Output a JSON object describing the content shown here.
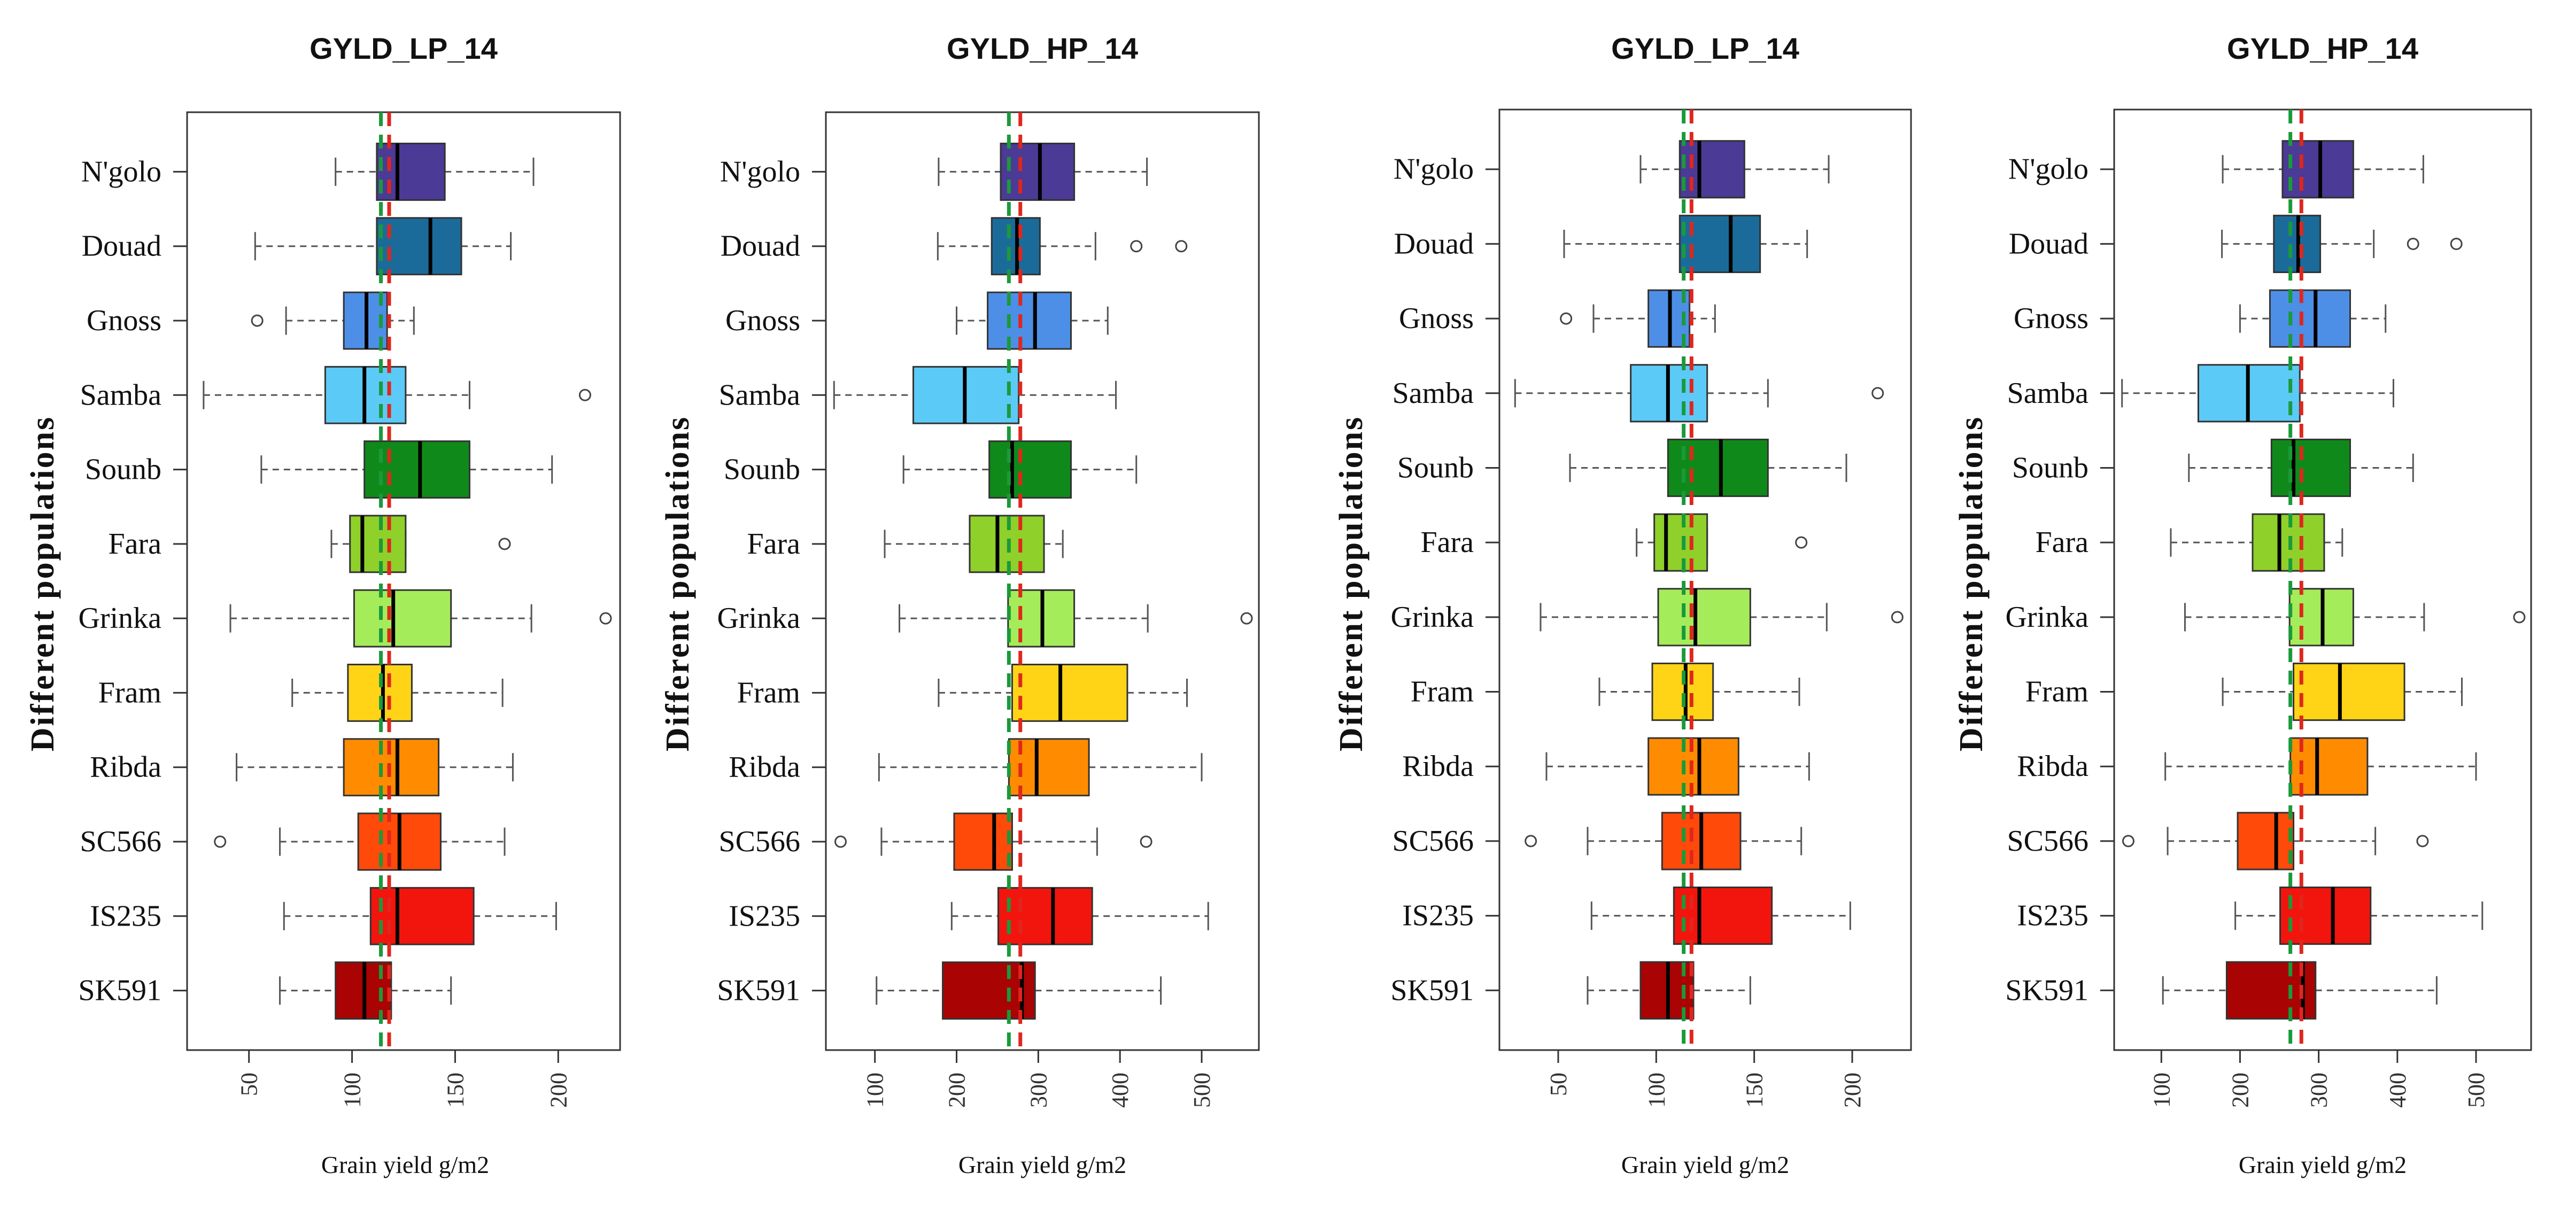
{
  "figure": {
    "ylabel": "Different populations",
    "xlabel": "Grain yield g/m2"
  },
  "colors": {
    "mean_line": "#e0261d",
    "median_line": "#1a9a3a",
    "box_stroke": "#333333",
    "whisker": "#555555",
    "outlier": "#444444"
  },
  "chart_data": [
    {
      "type": "boxplot",
      "title": "GYLD_LP_14",
      "xlabel": "Grain yield g/m2",
      "ylabel": "Different populations",
      "xlim": [
        20,
        230
      ],
      "xticks": [
        50,
        100,
        150,
        200
      ],
      "ref_lines": {
        "red_dashed": 118,
        "green_dashed": 114
      },
      "series": [
        {
          "name": "N'golo",
          "color": "#4b3a96",
          "wmin": 92,
          "q1": 112,
          "median": 122,
          "q3": 145,
          "wmax": 188,
          "outliers": []
        },
        {
          "name": "Douad",
          "color": "#1b6b9a",
          "wmin": 53,
          "q1": 112,
          "median": 138,
          "q3": 153,
          "wmax": 177,
          "outliers": []
        },
        {
          "name": "Gnoss",
          "color": "#4d8fe6",
          "wmin": 68,
          "q1": 96,
          "median": 107,
          "q3": 117,
          "wmax": 130,
          "outliers": [
            54
          ]
        },
        {
          "name": "Samba",
          "color": "#5ccaf7",
          "wmin": 28,
          "q1": 87,
          "median": 106,
          "q3": 126,
          "wmax": 157,
          "outliers": [
            213
          ]
        },
        {
          "name": "Sounb",
          "color": "#0f8a1a",
          "wmin": 56,
          "q1": 106,
          "median": 133,
          "q3": 157,
          "wmax": 197,
          "outliers": []
        },
        {
          "name": "Fara",
          "color": "#8fd02a",
          "wmin": 90,
          "q1": 99,
          "median": 105,
          "q3": 126,
          "wmax": 126,
          "outliers": [
            174
          ]
        },
        {
          "name": "Grinka",
          "color": "#a5ec5a",
          "wmin": 41,
          "q1": 101,
          "median": 120,
          "q3": 148,
          "wmax": 187,
          "outliers": [
            223
          ]
        },
        {
          "name": "Fram",
          "color": "#ffd417",
          "wmin": 71,
          "q1": 98,
          "median": 115,
          "q3": 129,
          "wmax": 173,
          "outliers": []
        },
        {
          "name": "Ribda",
          "color": "#ff8c00",
          "wmin": 44,
          "q1": 96,
          "median": 122,
          "q3": 142,
          "wmax": 178,
          "outliers": []
        },
        {
          "name": "SC566",
          "color": "#ff4a0a",
          "wmin": 65,
          "q1": 103,
          "median": 123,
          "q3": 143,
          "wmax": 174,
          "outliers": [
            36
          ]
        },
        {
          "name": "IS235",
          "color": "#f2150e",
          "wmin": 67,
          "q1": 109,
          "median": 122,
          "q3": 159,
          "wmax": 199,
          "outliers": []
        },
        {
          "name": "SK591",
          "color": "#a90303",
          "wmin": 65,
          "q1": 92,
          "median": 106,
          "q3": 119,
          "wmax": 148,
          "outliers": []
        }
      ]
    },
    {
      "type": "boxplot",
      "title": "GYLD_HP_14",
      "xlabel": "Grain yield g/m2",
      "ylabel": "Different populations",
      "xlim": [
        40,
        570
      ],
      "xticks": [
        100,
        200,
        300,
        400,
        500
      ],
      "ref_lines": {
        "red_dashed": 278,
        "green_dashed": 264
      },
      "series": [
        {
          "name": "N'golo",
          "color": "#4b3a96",
          "wmin": 178,
          "q1": 254,
          "median": 302,
          "q3": 344,
          "wmax": 433,
          "outliers": []
        },
        {
          "name": "Douad",
          "color": "#1b6b9a",
          "wmin": 177,
          "q1": 243,
          "median": 274,
          "q3": 302,
          "wmax": 370,
          "outliers": [
            420,
            475
          ]
        },
        {
          "name": "Gnoss",
          "color": "#4d8fe6",
          "wmin": 200,
          "q1": 238,
          "median": 296,
          "q3": 340,
          "wmax": 385,
          "outliers": []
        },
        {
          "name": "Samba",
          "color": "#5ccaf7",
          "wmin": 50,
          "q1": 147,
          "median": 210,
          "q3": 276,
          "wmax": 395,
          "outliers": []
        },
        {
          "name": "Sounb",
          "color": "#0f8a1a",
          "wmin": 135,
          "q1": 240,
          "median": 268,
          "q3": 340,
          "wmax": 420,
          "outliers": []
        },
        {
          "name": "Fara",
          "color": "#8fd02a",
          "wmin": 112,
          "q1": 216,
          "median": 250,
          "q3": 307,
          "wmax": 330,
          "outliers": []
        },
        {
          "name": "Grinka",
          "color": "#a5ec5a",
          "wmin": 130,
          "q1": 263,
          "median": 305,
          "q3": 344,
          "wmax": 434,
          "outliers": [
            555
          ]
        },
        {
          "name": "Fram",
          "color": "#ffd417",
          "wmin": 178,
          "q1": 268,
          "median": 327,
          "q3": 409,
          "wmax": 482,
          "outliers": []
        },
        {
          "name": "Ribda",
          "color": "#ff8c00",
          "wmin": 105,
          "q1": 264,
          "median": 298,
          "q3": 362,
          "wmax": 500,
          "outliers": []
        },
        {
          "name": "SC566",
          "color": "#ff4a0a",
          "wmin": 108,
          "q1": 197,
          "median": 246,
          "q3": 268,
          "wmax": 372,
          "outliers": [
            58,
            432
          ]
        },
        {
          "name": "IS235",
          "color": "#f2150e",
          "wmin": 194,
          "q1": 251,
          "median": 318,
          "q3": 366,
          "wmax": 508,
          "outliers": []
        },
        {
          "name": "SK591",
          "color": "#a90303",
          "wmin": 102,
          "q1": 183,
          "median": 280,
          "q3": 296,
          "wmax": 450,
          "outliers": []
        }
      ]
    },
    {
      "type": "boxplot",
      "title": "GYLD_LP_14",
      "xlabel": "Grain yield g/m2",
      "ylabel": "Different populations",
      "xlim": [
        20,
        230
      ],
      "xticks": [
        50,
        100,
        150,
        200
      ],
      "ref_lines": {
        "red_dashed": 118,
        "green_dashed": 114
      },
      "series": [
        {
          "name": "N'golo",
          "color": "#4b3a96",
          "wmin": 92,
          "q1": 112,
          "median": 122,
          "q3": 145,
          "wmax": 188,
          "outliers": []
        },
        {
          "name": "Douad",
          "color": "#1b6b9a",
          "wmin": 53,
          "q1": 112,
          "median": 138,
          "q3": 153,
          "wmax": 177,
          "outliers": []
        },
        {
          "name": "Gnoss",
          "color": "#4d8fe6",
          "wmin": 68,
          "q1": 96,
          "median": 107,
          "q3": 117,
          "wmax": 130,
          "outliers": [
            54
          ]
        },
        {
          "name": "Samba",
          "color": "#5ccaf7",
          "wmin": 28,
          "q1": 87,
          "median": 106,
          "q3": 126,
          "wmax": 157,
          "outliers": [
            213
          ]
        },
        {
          "name": "Sounb",
          "color": "#0f8a1a",
          "wmin": 56,
          "q1": 106,
          "median": 133,
          "q3": 157,
          "wmax": 197,
          "outliers": []
        },
        {
          "name": "Fara",
          "color": "#8fd02a",
          "wmin": 90,
          "q1": 99,
          "median": 105,
          "q3": 126,
          "wmax": 126,
          "outliers": [
            174
          ]
        },
        {
          "name": "Grinka",
          "color": "#a5ec5a",
          "wmin": 41,
          "q1": 101,
          "median": 120,
          "q3": 148,
          "wmax": 187,
          "outliers": [
            223
          ]
        },
        {
          "name": "Fram",
          "color": "#ffd417",
          "wmin": 71,
          "q1": 98,
          "median": 115,
          "q3": 129,
          "wmax": 173,
          "outliers": []
        },
        {
          "name": "Ribda",
          "color": "#ff8c00",
          "wmin": 44,
          "q1": 96,
          "median": 122,
          "q3": 142,
          "wmax": 178,
          "outliers": []
        },
        {
          "name": "SC566",
          "color": "#ff4a0a",
          "wmin": 65,
          "q1": 103,
          "median": 123,
          "q3": 143,
          "wmax": 174,
          "outliers": [
            36
          ]
        },
        {
          "name": "IS235",
          "color": "#f2150e",
          "wmin": 67,
          "q1": 109,
          "median": 122,
          "q3": 159,
          "wmax": 199,
          "outliers": []
        },
        {
          "name": "SK591",
          "color": "#a90303",
          "wmin": 65,
          "q1": 92,
          "median": 106,
          "q3": 119,
          "wmax": 148,
          "outliers": []
        }
      ]
    },
    {
      "type": "boxplot",
      "title": "GYLD_HP_14",
      "xlabel": "Grain yield g/m2",
      "ylabel": "Different populations",
      "xlim": [
        40,
        570
      ],
      "xticks": [
        100,
        200,
        300,
        400,
        500
      ],
      "ref_lines": {
        "red_dashed": 278,
        "green_dashed": 264
      },
      "series": [
        {
          "name": "N'golo",
          "color": "#4b3a96",
          "wmin": 178,
          "q1": 254,
          "median": 302,
          "q3": 344,
          "wmax": 433,
          "outliers": []
        },
        {
          "name": "Douad",
          "color": "#1b6b9a",
          "wmin": 177,
          "q1": 243,
          "median": 274,
          "q3": 302,
          "wmax": 370,
          "outliers": [
            420,
            475
          ]
        },
        {
          "name": "Gnoss",
          "color": "#4d8fe6",
          "wmin": 200,
          "q1": 238,
          "median": 296,
          "q3": 340,
          "wmax": 385,
          "outliers": []
        },
        {
          "name": "Samba",
          "color": "#5ccaf7",
          "wmin": 50,
          "q1": 147,
          "median": 210,
          "q3": 276,
          "wmax": 395,
          "outliers": []
        },
        {
          "name": "Sounb",
          "color": "#0f8a1a",
          "wmin": 135,
          "q1": 240,
          "median": 268,
          "q3": 340,
          "wmax": 420,
          "outliers": []
        },
        {
          "name": "Fara",
          "color": "#8fd02a",
          "wmin": 112,
          "q1": 216,
          "median": 250,
          "q3": 307,
          "wmax": 330,
          "outliers": []
        },
        {
          "name": "Grinka",
          "color": "#a5ec5a",
          "wmin": 130,
          "q1": 263,
          "median": 305,
          "q3": 344,
          "wmax": 434,
          "outliers": [
            555
          ]
        },
        {
          "name": "Fram",
          "color": "#ffd417",
          "wmin": 178,
          "q1": 268,
          "median": 327,
          "q3": 409,
          "wmax": 482,
          "outliers": []
        },
        {
          "name": "Ribda",
          "color": "#ff8c00",
          "wmin": 105,
          "q1": 264,
          "median": 298,
          "q3": 362,
          "wmax": 500,
          "outliers": []
        },
        {
          "name": "SC566",
          "color": "#ff4a0a",
          "wmin": 108,
          "q1": 197,
          "median": 246,
          "q3": 268,
          "wmax": 372,
          "outliers": [
            58,
            432
          ]
        },
        {
          "name": "IS235",
          "color": "#f2150e",
          "wmin": 194,
          "q1": 251,
          "median": 318,
          "q3": 366,
          "wmax": 508,
          "outliers": []
        },
        {
          "name": "SK591",
          "color": "#a90303",
          "wmin": 102,
          "q1": 183,
          "median": 280,
          "q3": 296,
          "wmax": 450,
          "outliers": []
        }
      ]
    }
  ]
}
